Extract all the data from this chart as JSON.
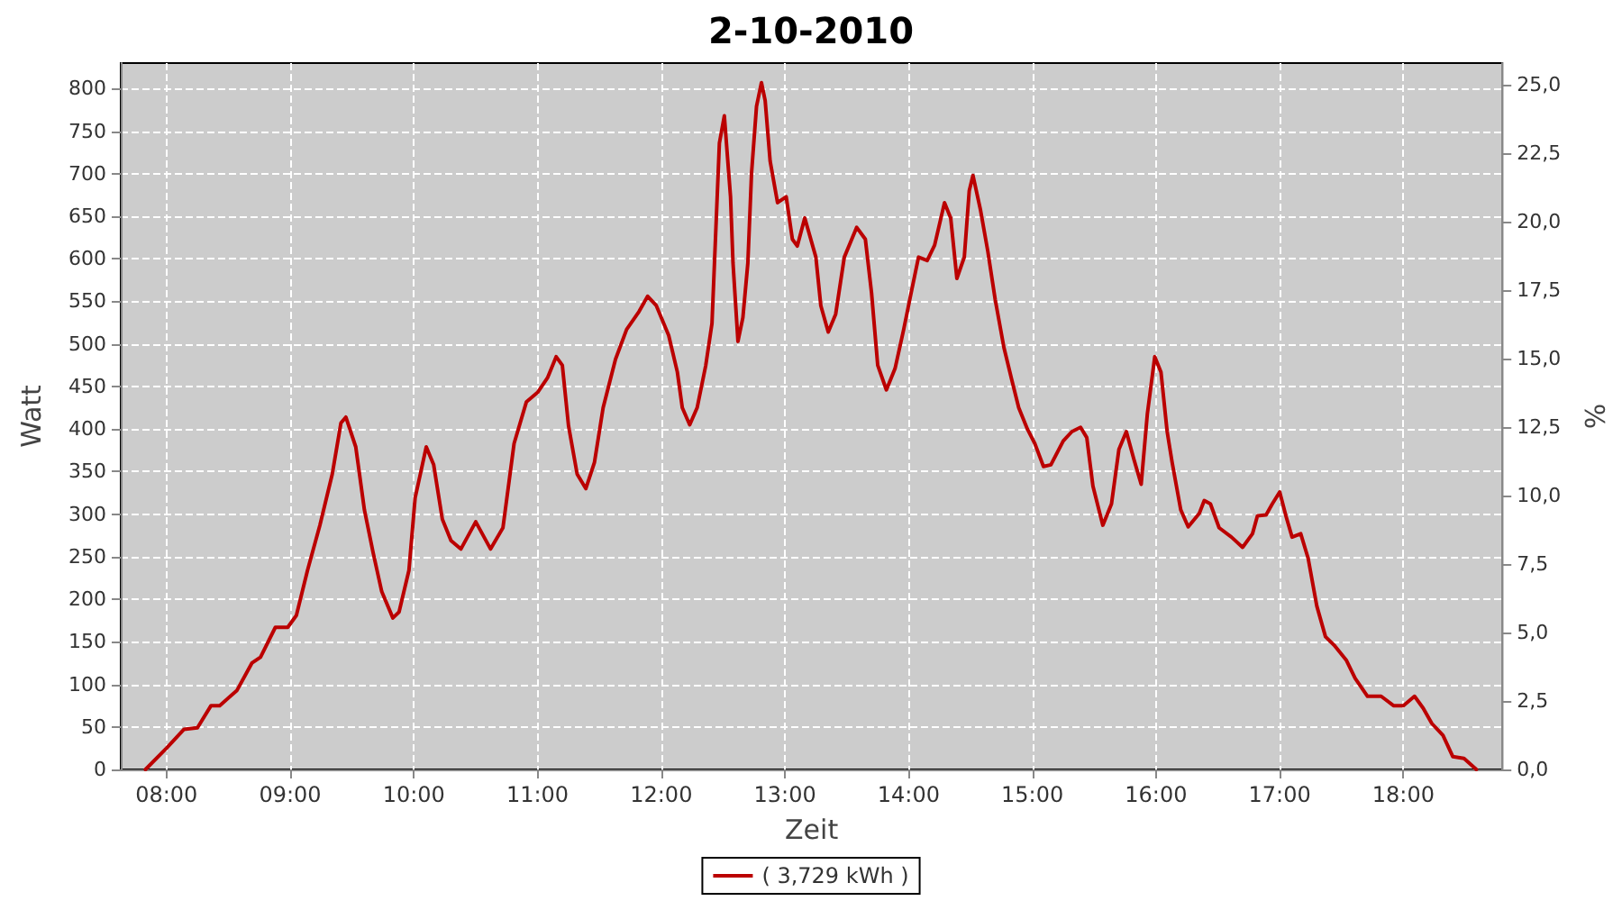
{
  "chart_data": {
    "type": "line",
    "title": "2-10-2010",
    "xlabel": "Zeit",
    "ylabel": "Watt",
    "y2label": "%",
    "x": [
      7.83,
      8.0,
      8.14,
      8.25,
      8.36,
      8.43,
      8.57,
      8.69,
      8.76,
      8.88,
      8.98,
      9.05,
      9.14,
      9.24,
      9.34,
      9.41,
      9.45,
      9.53,
      9.6,
      9.67,
      9.74,
      9.83,
      9.88,
      9.96,
      10.01,
      10.1,
      10.16,
      10.23,
      10.3,
      10.38,
      10.5,
      10.62,
      10.72,
      10.81,
      10.91,
      11.0,
      11.08,
      11.15,
      11.2,
      11.25,
      11.32,
      11.39,
      11.46,
      11.53,
      11.63,
      11.72,
      11.82,
      11.89,
      11.96,
      12.06,
      12.13,
      12.17,
      12.23,
      12.29,
      12.36,
      12.41,
      12.44,
      12.47,
      12.51,
      12.56,
      12.58,
      12.62,
      12.66,
      12.7,
      12.73,
      12.77,
      12.81,
      12.84,
      12.88,
      12.94,
      13.01,
      13.06,
      13.1,
      13.16,
      13.25,
      13.29,
      13.35,
      13.41,
      13.48,
      13.58,
      13.65,
      13.7,
      13.75,
      13.82,
      13.89,
      13.96,
      14.02,
      14.08,
      14.15,
      14.21,
      14.29,
      14.34,
      14.39,
      14.45,
      14.49,
      14.52,
      14.58,
      14.64,
      14.7,
      14.77,
      14.83,
      14.89,
      14.96,
      15.02,
      15.09,
      15.15,
      15.25,
      15.32,
      15.39,
      15.44,
      15.49,
      15.57,
      15.64,
      15.7,
      15.76,
      15.82,
      15.88,
      15.93,
      15.99,
      16.04,
      16.09,
      16.13,
      16.2,
      16.26,
      16.35,
      16.39,
      16.44,
      16.51,
      16.61,
      16.7,
      16.78,
      16.82,
      16.89,
      16.94,
      17.0,
      17.05,
      17.1,
      17.17,
      17.23,
      17.3,
      17.37,
      17.44,
      17.54,
      17.61,
      17.71,
      17.82,
      17.92,
      18.0,
      18.09,
      18.16,
      18.23,
      18.32,
      18.4,
      18.49,
      18.59
    ],
    "series": [
      {
        "name": "( 3,729 kWh )",
        "color": "#bb0000",
        "values": [
          0,
          25,
          47,
          49,
          75,
          75,
          93,
          125,
          132,
          167,
          167,
          181,
          234,
          287,
          347,
          407,
          414,
          379,
          305,
          255,
          209,
          178,
          185,
          234,
          319,
          379,
          358,
          294,
          269,
          259,
          291,
          259,
          284,
          383,
          432,
          443,
          460,
          485,
          475,
          404,
          347,
          330,
          361,
          425,
          482,
          517,
          538,
          556,
          545,
          510,
          467,
          425,
          405,
          425,
          475,
          524,
          630,
          736,
          768,
          673,
          595,
          503,
          531,
          595,
          701,
          779,
          807,
          786,
          715,
          666,
          673,
          623,
          615,
          648,
          602,
          545,
          514,
          535,
          602,
          637,
          623,
          560,
          475,
          446,
          471,
          517,
          560,
          602,
          598,
          616,
          666,
          648,
          577,
          602,
          680,
          698,
          658,
          609,
          552,
          496,
          460,
          425,
          400,
          383,
          356,
          358,
          386,
          397,
          402,
          390,
          333,
          287,
          312,
          376,
          397,
          365,
          335,
          418,
          485,
          467,
          397,
          361,
          305,
          285,
          301,
          316,
          312,
          284,
          273,
          261,
          277,
          298,
          299,
          312,
          326,
          298,
          273,
          277,
          248,
          192,
          156,
          146,
          128,
          107,
          86,
          86,
          75,
          75,
          86,
          72,
          54,
          40,
          15,
          13,
          0
        ]
      }
    ],
    "xlim": [
      7.63,
      18.8
    ],
    "xticks": [
      {
        "value": 8,
        "label": "08:00"
      },
      {
        "value": 9,
        "label": "09:00"
      },
      {
        "value": 10,
        "label": "10:00"
      },
      {
        "value": 11,
        "label": "11:00"
      },
      {
        "value": 12,
        "label": "12:00"
      },
      {
        "value": 13,
        "label": "13:00"
      },
      {
        "value": 14,
        "label": "14:00"
      },
      {
        "value": 15,
        "label": "15:00"
      },
      {
        "value": 16,
        "label": "16:00"
      },
      {
        "value": 17,
        "label": "17:00"
      },
      {
        "value": 18,
        "label": "18:00"
      }
    ],
    "ylim": [
      0,
      830
    ],
    "yticks": [
      0,
      50,
      100,
      150,
      200,
      250,
      300,
      350,
      400,
      450,
      500,
      550,
      600,
      650,
      700,
      750,
      800
    ],
    "y2lim": [
      0,
      25.8
    ],
    "y2ticks": [
      {
        "value": 0,
        "label": "0,0"
      },
      {
        "value": 2.5,
        "label": "2,5"
      },
      {
        "value": 5,
        "label": "5,0"
      },
      {
        "value": 7.5,
        "label": "7,5"
      },
      {
        "value": 10,
        "label": "10,0"
      },
      {
        "value": 12.5,
        "label": "12,5"
      },
      {
        "value": 15,
        "label": "15,0"
      },
      {
        "value": 17.5,
        "label": "17,5"
      },
      {
        "value": 20,
        "label": "20,0"
      },
      {
        "value": 22.5,
        "label": "22,5"
      },
      {
        "value": 25,
        "label": "25,0"
      }
    ],
    "grid": true,
    "legend": "bottom",
    "marker": "none",
    "line_style": "solid"
  }
}
